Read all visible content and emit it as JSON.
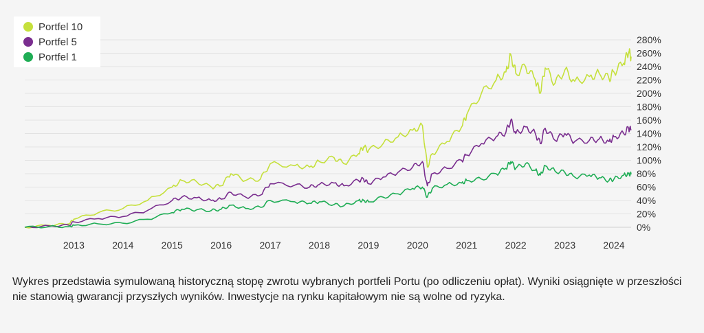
{
  "chart_data": {
    "type": "line",
    "x_ticks": [
      "2013",
      "2014",
      "2015",
      "2016",
      "2017",
      "2018",
      "2019",
      "2020",
      "2021",
      "2022",
      "2023",
      "2024"
    ],
    "y_ticks": [
      "0%",
      "20%",
      "40%",
      "60%",
      "80%",
      "100%",
      "120%",
      "140%",
      "160%",
      "180%",
      "200%",
      "220%",
      "240%",
      "260%",
      "280%"
    ],
    "ylim": [
      0,
      280
    ],
    "xlim": [
      2012.0,
      2024.35
    ],
    "grid": true,
    "legend_position": "top-left",
    "series": [
      {
        "name": "Portfel 10",
        "color": "#c5e03c",
        "x": [
          2012.0,
          2012.5,
          2012.9,
          2013.0,
          2013.5,
          2014.0,
          2014.5,
          2015.0,
          2015.2,
          2015.5,
          2015.8,
          2016.0,
          2016.2,
          2016.5,
          2016.8,
          2017.0,
          2017.5,
          2017.8,
          2018.0,
          2018.3,
          2018.5,
          2018.8,
          2018.9,
          2019.0,
          2019.3,
          2019.6,
          2019.9,
          2020.1,
          2020.2,
          2020.3,
          2020.6,
          2020.9,
          2021.0,
          2021.3,
          2021.6,
          2021.8,
          2021.9,
          2022.0,
          2022.2,
          2022.4,
          2022.5,
          2022.6,
          2022.8,
          2023.0,
          2023.2,
          2023.5,
          2023.7,
          2023.9,
          2024.0,
          2024.2,
          2024.3,
          2024.35
        ],
        "values": [
          0,
          3,
          5,
          12,
          22,
          28,
          40,
          60,
          70,
          68,
          60,
          62,
          80,
          70,
          72,
          95,
          92,
          90,
          98,
          104,
          95,
          110,
          120,
          115,
          125,
          135,
          145,
          152,
          90,
          110,
          128,
          150,
          168,
          200,
          220,
          232,
          258,
          230,
          240,
          220,
          200,
          238,
          215,
          235,
          218,
          225,
          230,
          222,
          232,
          245,
          262,
          255
        ]
      },
      {
        "name": "Portfel 5",
        "color": "#7a2e8f",
        "x": [
          2012.0,
          2012.5,
          2012.9,
          2013.0,
          2013.5,
          2014.0,
          2014.5,
          2015.0,
          2015.2,
          2015.5,
          2015.8,
          2016.0,
          2016.2,
          2016.5,
          2016.8,
          2017.0,
          2017.5,
          2017.8,
          2018.0,
          2018.3,
          2018.5,
          2018.8,
          2018.9,
          2019.0,
          2019.3,
          2019.6,
          2019.9,
          2020.1,
          2020.2,
          2020.3,
          2020.6,
          2020.9,
          2021.0,
          2021.3,
          2021.6,
          2021.8,
          2021.9,
          2022.0,
          2022.2,
          2022.4,
          2022.5,
          2022.6,
          2022.8,
          2023.0,
          2023.2,
          2023.5,
          2023.7,
          2023.9,
          2024.0,
          2024.2,
          2024.3,
          2024.35
        ],
        "values": [
          0,
          2,
          3,
          8,
          13,
          16,
          25,
          40,
          45,
          44,
          40,
          42,
          52,
          45,
          48,
          65,
          63,
          60,
          64,
          66,
          62,
          70,
          72,
          65,
          75,
          82,
          90,
          98,
          62,
          80,
          88,
          100,
          108,
          125,
          135,
          142,
          160,
          140,
          150,
          140,
          125,
          148,
          130,
          140,
          128,
          130,
          132,
          128,
          135,
          140,
          148,
          145
        ]
      },
      {
        "name": "Portfel 1",
        "color": "#1fad55",
        "x": [
          2012.0,
          2012.5,
          2012.9,
          2013.0,
          2013.5,
          2014.0,
          2014.5,
          2015.0,
          2015.2,
          2015.5,
          2015.8,
          2016.0,
          2016.2,
          2016.5,
          2016.8,
          2017.0,
          2017.5,
          2017.8,
          2018.0,
          2018.3,
          2018.5,
          2018.8,
          2018.9,
          2019.0,
          2019.3,
          2019.6,
          2019.9,
          2020.1,
          2020.2,
          2020.3,
          2020.6,
          2020.9,
          2021.0,
          2021.3,
          2021.6,
          2021.8,
          2021.9,
          2022.0,
          2022.2,
          2022.4,
          2022.5,
          2022.6,
          2022.8,
          2023.0,
          2023.2,
          2023.5,
          2023.7,
          2023.9,
          2024.0,
          2024.2,
          2024.3,
          2024.35
        ],
        "values": [
          0,
          1,
          1,
          3,
          5,
          6,
          12,
          22,
          27,
          26,
          25,
          27,
          33,
          28,
          30,
          40,
          38,
          36,
          38,
          34,
          32,
          40,
          40,
          38,
          45,
          50,
          58,
          60,
          45,
          58,
          64,
          66,
          70,
          72,
          80,
          88,
          98,
          88,
          95,
          85,
          78,
          92,
          84,
          82,
          75,
          78,
          74,
          70,
          72,
          78,
          80,
          79
        ]
      }
    ]
  },
  "legend": [
    {
      "label": "Portfel 10",
      "color": "#c5e03c"
    },
    {
      "label": "Portfel 5",
      "color": "#7a2e8f"
    },
    {
      "label": "Portfel 1",
      "color": "#1fad55"
    }
  ],
  "caption": "Wykres przedstawia symulowaną historyczną stopę zwrotu wybranych portfeli Portu (po odliczeniu opłat). Wyniki osiągnięte w przeszłości nie stanowią gwarancji przyszłych wyników. Inwestycje na rynku kapitałowym nie są wolne od ryzyka."
}
